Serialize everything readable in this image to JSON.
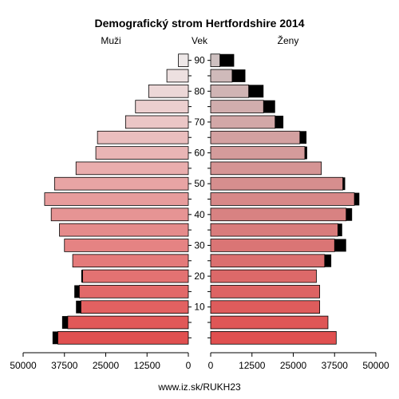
{
  "chart_data": {
    "type": "bar",
    "title": "Demografický strom Hertfordshire 2014",
    "left_label": "Muži",
    "center_label": "Vek",
    "right_label": "Ženy",
    "footer": "www.iz.sk/RUKH23",
    "age_groups": [
      "0-4",
      "5-9",
      "10-14",
      "15-19",
      "20-24",
      "25-29",
      "30-34",
      "35-39",
      "40-44",
      "45-49",
      "50-54",
      "55-59",
      "60-64",
      "65-69",
      "70-74",
      "75-79",
      "80-84",
      "85-89",
      "90+"
    ],
    "age_tick_labels": [
      "10",
      "20",
      "30",
      "40",
      "50",
      "60",
      "70",
      "80",
      "90"
    ],
    "x_tick_labels_left": [
      "50000",
      "37500",
      "25000",
      "12500",
      "0"
    ],
    "x_tick_labels_right": [
      "0",
      "12500",
      "25000",
      "37500",
      "50000"
    ],
    "xlim": [
      0,
      50000
    ],
    "series": [
      {
        "name": "Muži",
        "side": "left",
        "values": [
          39500,
          36500,
          32500,
          33000,
          32000,
          35000,
          37500,
          39000,
          41500,
          43500,
          40500,
          34000,
          28000,
          27500,
          19000,
          16000,
          12000,
          6500,
          3000
        ],
        "overlay": [
          1600,
          1700,
          1500,
          1500,
          400,
          0,
          0,
          0,
          0,
          0,
          0,
          0,
          0,
          0,
          0,
          0,
          0,
          0,
          0
        ]
      },
      {
        "name": "Ženy",
        "side": "right",
        "values": [
          38000,
          35500,
          33000,
          33000,
          32000,
          34500,
          37500,
          38500,
          41000,
          43500,
          40000,
          33500,
          28500,
          27000,
          19500,
          16000,
          11500,
          6500,
          2800
        ],
        "overlay": [
          0,
          0,
          0,
          0,
          0,
          2000,
          3500,
          1300,
          1800,
          1500,
          700,
          0,
          700,
          2000,
          2500,
          3500,
          4500,
          4000,
          4300
        ]
      }
    ]
  }
}
